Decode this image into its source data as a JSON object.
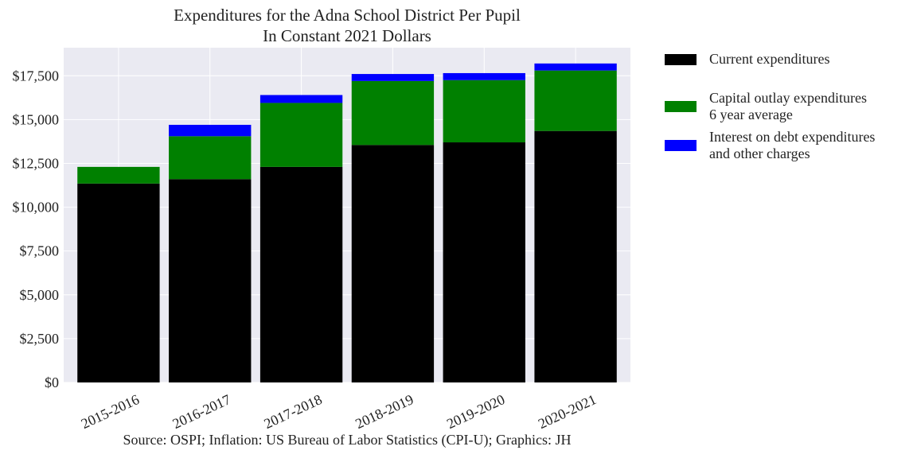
{
  "chart_data": {
    "type": "bar",
    "stacked": true,
    "title": "Expenditures for the Adna School District Per Pupil",
    "subtitle": "In Constant 2021 Dollars",
    "source": "Source: OSPI; Inflation: US Bureau of Labor Statistics (CPI-U); Graphics: JH",
    "categories": [
      "2015-2016",
      "2016-2017",
      "2017-2018",
      "2018-2019",
      "2019-2020",
      "2020-2021"
    ],
    "series": [
      {
        "name": "Current expenditures",
        "color": "#000000",
        "values": [
          11350,
          11600,
          12300,
          13550,
          13700,
          14350
        ]
      },
      {
        "name_lines": [
          "Capital outlay expenditures",
          "6 year average"
        ],
        "color": "#008000",
        "values": [
          950,
          2450,
          3650,
          3650,
          3550,
          3450
        ]
      },
      {
        "name_lines": [
          "Interest on debt expenditures",
          "and other charges"
        ],
        "color": "#0000ff",
        "values": [
          0,
          650,
          450,
          400,
          400,
          400
        ]
      }
    ],
    "y_ticks": [
      "$0",
      "$2,500",
      "$5,000",
      "$7,500",
      "$10,000",
      "$12,500",
      "$15,000",
      "$17,500"
    ],
    "ylim": [
      0,
      19100
    ],
    "grid": true,
    "legend_position": "outside-right"
  }
}
